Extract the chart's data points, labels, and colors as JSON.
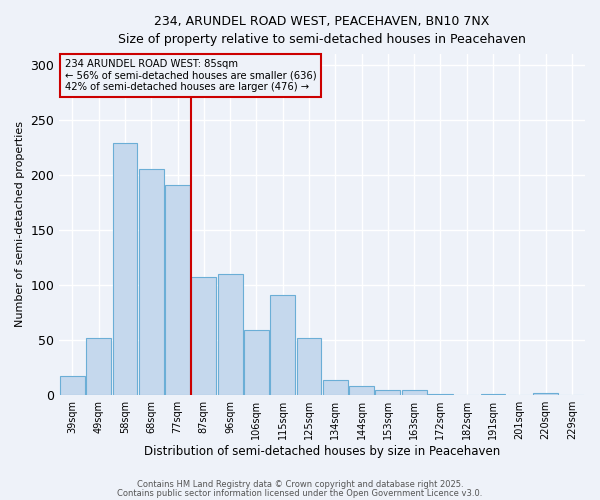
{
  "title_line1": "234, ARUNDEL ROAD WEST, PEACEHAVEN, BN10 7NX",
  "title_line2": "Size of property relative to semi-detached houses in Peacehaven",
  "xlabel": "Distribution of semi-detached houses by size in Peacehaven",
  "ylabel": "Number of semi-detached properties",
  "bins": [
    "39sqm",
    "49sqm",
    "58sqm",
    "68sqm",
    "77sqm",
    "87sqm",
    "96sqm",
    "106sqm",
    "115sqm",
    "125sqm",
    "134sqm",
    "144sqm",
    "153sqm",
    "163sqm",
    "172sqm",
    "182sqm",
    "191sqm",
    "201sqm",
    "220sqm",
    "229sqm"
  ],
  "values": [
    17,
    52,
    229,
    205,
    191,
    107,
    110,
    59,
    91,
    52,
    13,
    8,
    4,
    4,
    1,
    0,
    1,
    0,
    2,
    0
  ],
  "bar_color": "#c5d8ed",
  "bar_edge_color": "#6baed6",
  "vline_x": 4.5,
  "vline_color": "#cc0000",
  "annotation_title": "234 ARUNDEL ROAD WEST: 85sqm",
  "annotation_line2": "← 56% of semi-detached houses are smaller (636)",
  "annotation_line3": "42% of semi-detached houses are larger (476) →",
  "annotation_box_color": "#cc0000",
  "ylim": [
    0,
    310
  ],
  "yticks": [
    0,
    50,
    100,
    150,
    200,
    250,
    300
  ],
  "footer1": "Contains HM Land Registry data © Crown copyright and database right 2025.",
  "footer2": "Contains public sector information licensed under the Open Government Licence v3.0.",
  "bg_color": "#eef2f9",
  "grid_color": "#ffffff"
}
